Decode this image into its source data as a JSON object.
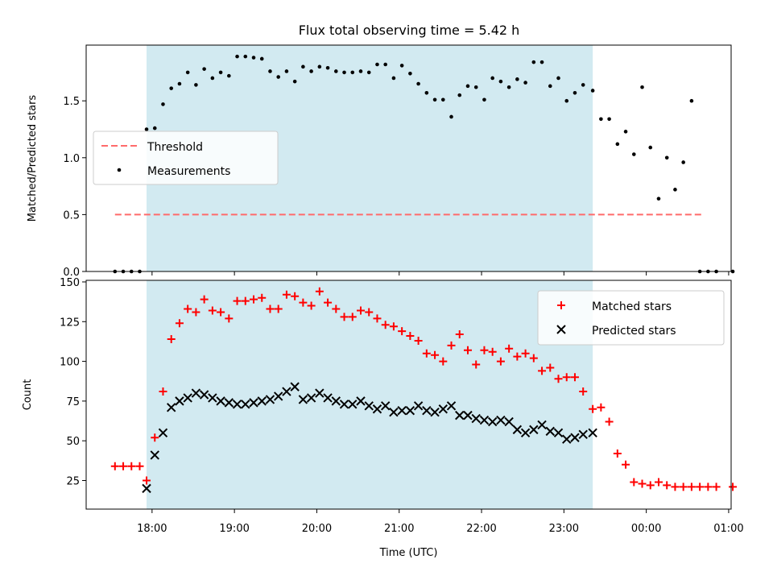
{
  "title": "Flux total observing time = 5.42 h",
  "colors": {
    "span_fill": "#add8e6",
    "threshold": "#ff6b6b",
    "measurement": "#000000",
    "matched": "#ff0000",
    "predicted": "#000000"
  },
  "chart_data": [
    {
      "type": "scatter",
      "panel": "top",
      "ylabel": "Matched/Predicted stars",
      "xlabel": "",
      "x_axis": "time (hours since 17:00 UTC of observing night)",
      "xlim": [
        17.2,
        25.03
      ],
      "ylim": [
        0,
        1.99
      ],
      "yticks": [
        0.0,
        0.5,
        1.0,
        1.5
      ],
      "ytick_labels": [
        "0.0",
        "0.5",
        "1.0",
        "1.5"
      ],
      "grid": false,
      "legend_location": "center-left",
      "legend": [
        "Threshold",
        "Measurements"
      ],
      "observing_span": [
        "17:56",
        "23:21"
      ],
      "threshold": {
        "name": "Threshold",
        "value": 0.5,
        "x_range": [
          "17:33",
          "24:40"
        ]
      },
      "series": [
        {
          "name": "Measurements",
          "x": [
            "17:33",
            "17:39",
            "17:45",
            "17:51",
            "17:56",
            "18:02",
            "18:08",
            "18:14",
            "18:20",
            "18:26",
            "18:32",
            "18:38",
            "18:44",
            "18:50",
            "18:56",
            "19:02",
            "19:08",
            "19:14",
            "19:20",
            "19:26",
            "19:32",
            "19:38",
            "19:44",
            "19:50",
            "19:56",
            "20:02",
            "20:08",
            "20:14",
            "20:20",
            "20:26",
            "20:32",
            "20:38",
            "20:44",
            "20:50",
            "20:56",
            "21:02",
            "21:08",
            "21:14",
            "21:20",
            "21:26",
            "21:32",
            "21:38",
            "21:44",
            "21:50",
            "21:56",
            "22:02",
            "22:08",
            "22:14",
            "22:20",
            "22:26",
            "22:32",
            "22:38",
            "22:44",
            "22:50",
            "22:56",
            "23:02",
            "23:08",
            "23:14",
            "23:21",
            "23:27",
            "23:33",
            "23:39",
            "23:45",
            "23:51",
            "23:57",
            "00:03",
            "00:09",
            "00:15",
            "00:21",
            "00:27",
            "00:33",
            "00:39",
            "00:45",
            "00:51",
            "01:03"
          ],
          "y": [
            0.0,
            0.0,
            0.0,
            0.0,
            1.25,
            1.26,
            1.47,
            1.61,
            1.65,
            1.75,
            1.64,
            1.78,
            1.7,
            1.75,
            1.72,
            1.89,
            1.89,
            1.88,
            1.87,
            1.76,
            1.71,
            1.76,
            1.67,
            1.8,
            1.76,
            1.8,
            1.79,
            1.76,
            1.75,
            1.75,
            1.76,
            1.75,
            1.82,
            1.82,
            1.7,
            1.81,
            1.74,
            1.65,
            1.57,
            1.51,
            1.51,
            1.36,
            1.55,
            1.63,
            1.62,
            1.51,
            1.7,
            1.67,
            1.62,
            1.69,
            1.66,
            1.84,
            1.84,
            1.63,
            1.7,
            1.5,
            1.57,
            1.64,
            1.59,
            1.34,
            1.34,
            1.12,
            1.23,
            1.03,
            1.62,
            1.09,
            0.64,
            1.0,
            0.72,
            0.96,
            1.5,
            0.0,
            0.0,
            0.0,
            0.0
          ]
        }
      ]
    },
    {
      "type": "scatter",
      "panel": "bottom",
      "ylabel": "Count",
      "xlabel": "Time (UTC)",
      "xlim": [
        17.2,
        25.03
      ],
      "ylim": [
        7,
        151
      ],
      "yticks": [
        25,
        50,
        75,
        100,
        125,
        150
      ],
      "ytick_labels": [
        "25",
        "50",
        "75",
        "100",
        "125",
        "150"
      ],
      "xticks": [
        "18:00",
        "19:00",
        "20:00",
        "21:00",
        "22:00",
        "23:00",
        "00:00",
        "01:00"
      ],
      "grid": false,
      "legend_location": "top-right",
      "legend": [
        "Matched stars",
        "Predicted stars"
      ],
      "observing_span": [
        "17:56",
        "23:21"
      ],
      "series": [
        {
          "name": "Matched stars",
          "marker": "+",
          "x": [
            "17:33",
            "17:39",
            "17:45",
            "17:51",
            "17:56",
            "18:02",
            "18:08",
            "18:14",
            "18:20",
            "18:26",
            "18:32",
            "18:38",
            "18:44",
            "18:50",
            "18:56",
            "19:02",
            "19:08",
            "19:14",
            "19:20",
            "19:26",
            "19:32",
            "19:38",
            "19:44",
            "19:50",
            "19:56",
            "20:02",
            "20:08",
            "20:14",
            "20:20",
            "20:26",
            "20:32",
            "20:38",
            "20:44",
            "20:50",
            "20:56",
            "21:02",
            "21:08",
            "21:14",
            "21:20",
            "21:26",
            "21:32",
            "21:38",
            "21:44",
            "21:50",
            "21:56",
            "22:02",
            "22:08",
            "22:14",
            "22:20",
            "22:26",
            "22:32",
            "22:38",
            "22:44",
            "22:50",
            "22:56",
            "23:02",
            "23:08",
            "23:14",
            "23:21",
            "23:27",
            "23:33",
            "23:39",
            "23:45",
            "23:51",
            "23:57",
            "00:03",
            "00:09",
            "00:15",
            "00:21",
            "00:27",
            "00:33",
            "00:39",
            "00:45",
            "00:51",
            "01:03"
          ],
          "y": [
            34,
            34,
            34,
            34,
            25,
            52,
            81,
            114,
            124,
            133,
            131,
            139,
            132,
            131,
            127,
            138,
            138,
            139,
            140,
            133,
            133,
            142,
            141,
            137,
            135,
            144,
            137,
            133,
            128,
            128,
            132,
            131,
            127,
            123,
            122,
            119,
            116,
            113,
            105,
            104,
            100,
            110,
            117,
            107,
            98,
            107,
            106,
            100,
            108,
            103,
            105,
            102,
            94,
            96,
            89,
            90,
            90,
            81,
            70,
            71,
            62,
            42,
            35,
            24,
            23,
            22,
            24,
            22,
            21,
            21,
            21,
            21,
            21,
            21,
            21
          ]
        },
        {
          "name": "Predicted stars",
          "marker": "x",
          "x": [
            "17:56",
            "18:02",
            "18:08",
            "18:14",
            "18:20",
            "18:26",
            "18:32",
            "18:38",
            "18:44",
            "18:50",
            "18:56",
            "19:02",
            "19:08",
            "19:14",
            "19:20",
            "19:26",
            "19:32",
            "19:38",
            "19:44",
            "19:50",
            "19:56",
            "20:02",
            "20:08",
            "20:14",
            "20:20",
            "20:26",
            "20:32",
            "20:38",
            "20:44",
            "20:50",
            "20:56",
            "21:02",
            "21:08",
            "21:14",
            "21:20",
            "21:26",
            "21:32",
            "21:38",
            "21:44",
            "21:50",
            "21:56",
            "22:02",
            "22:08",
            "22:14",
            "22:20",
            "22:26",
            "22:32",
            "22:38",
            "22:44",
            "22:50",
            "22:56",
            "23:02",
            "23:08",
            "23:14",
            "23:21"
          ],
          "y": [
            20,
            41,
            55,
            71,
            75,
            77,
            80,
            79,
            77,
            75,
            74,
            73,
            73,
            74,
            75,
            76,
            78,
            81,
            84,
            76,
            77,
            80,
            77,
            75,
            73,
            73,
            75,
            72,
            70,
            72,
            68,
            69,
            69,
            72,
            69,
            68,
            70,
            72,
            66,
            66,
            64,
            63,
            62,
            63,
            62,
            57,
            55,
            57,
            60,
            56,
            55,
            51,
            52,
            54,
            55
          ]
        }
      ]
    }
  ]
}
